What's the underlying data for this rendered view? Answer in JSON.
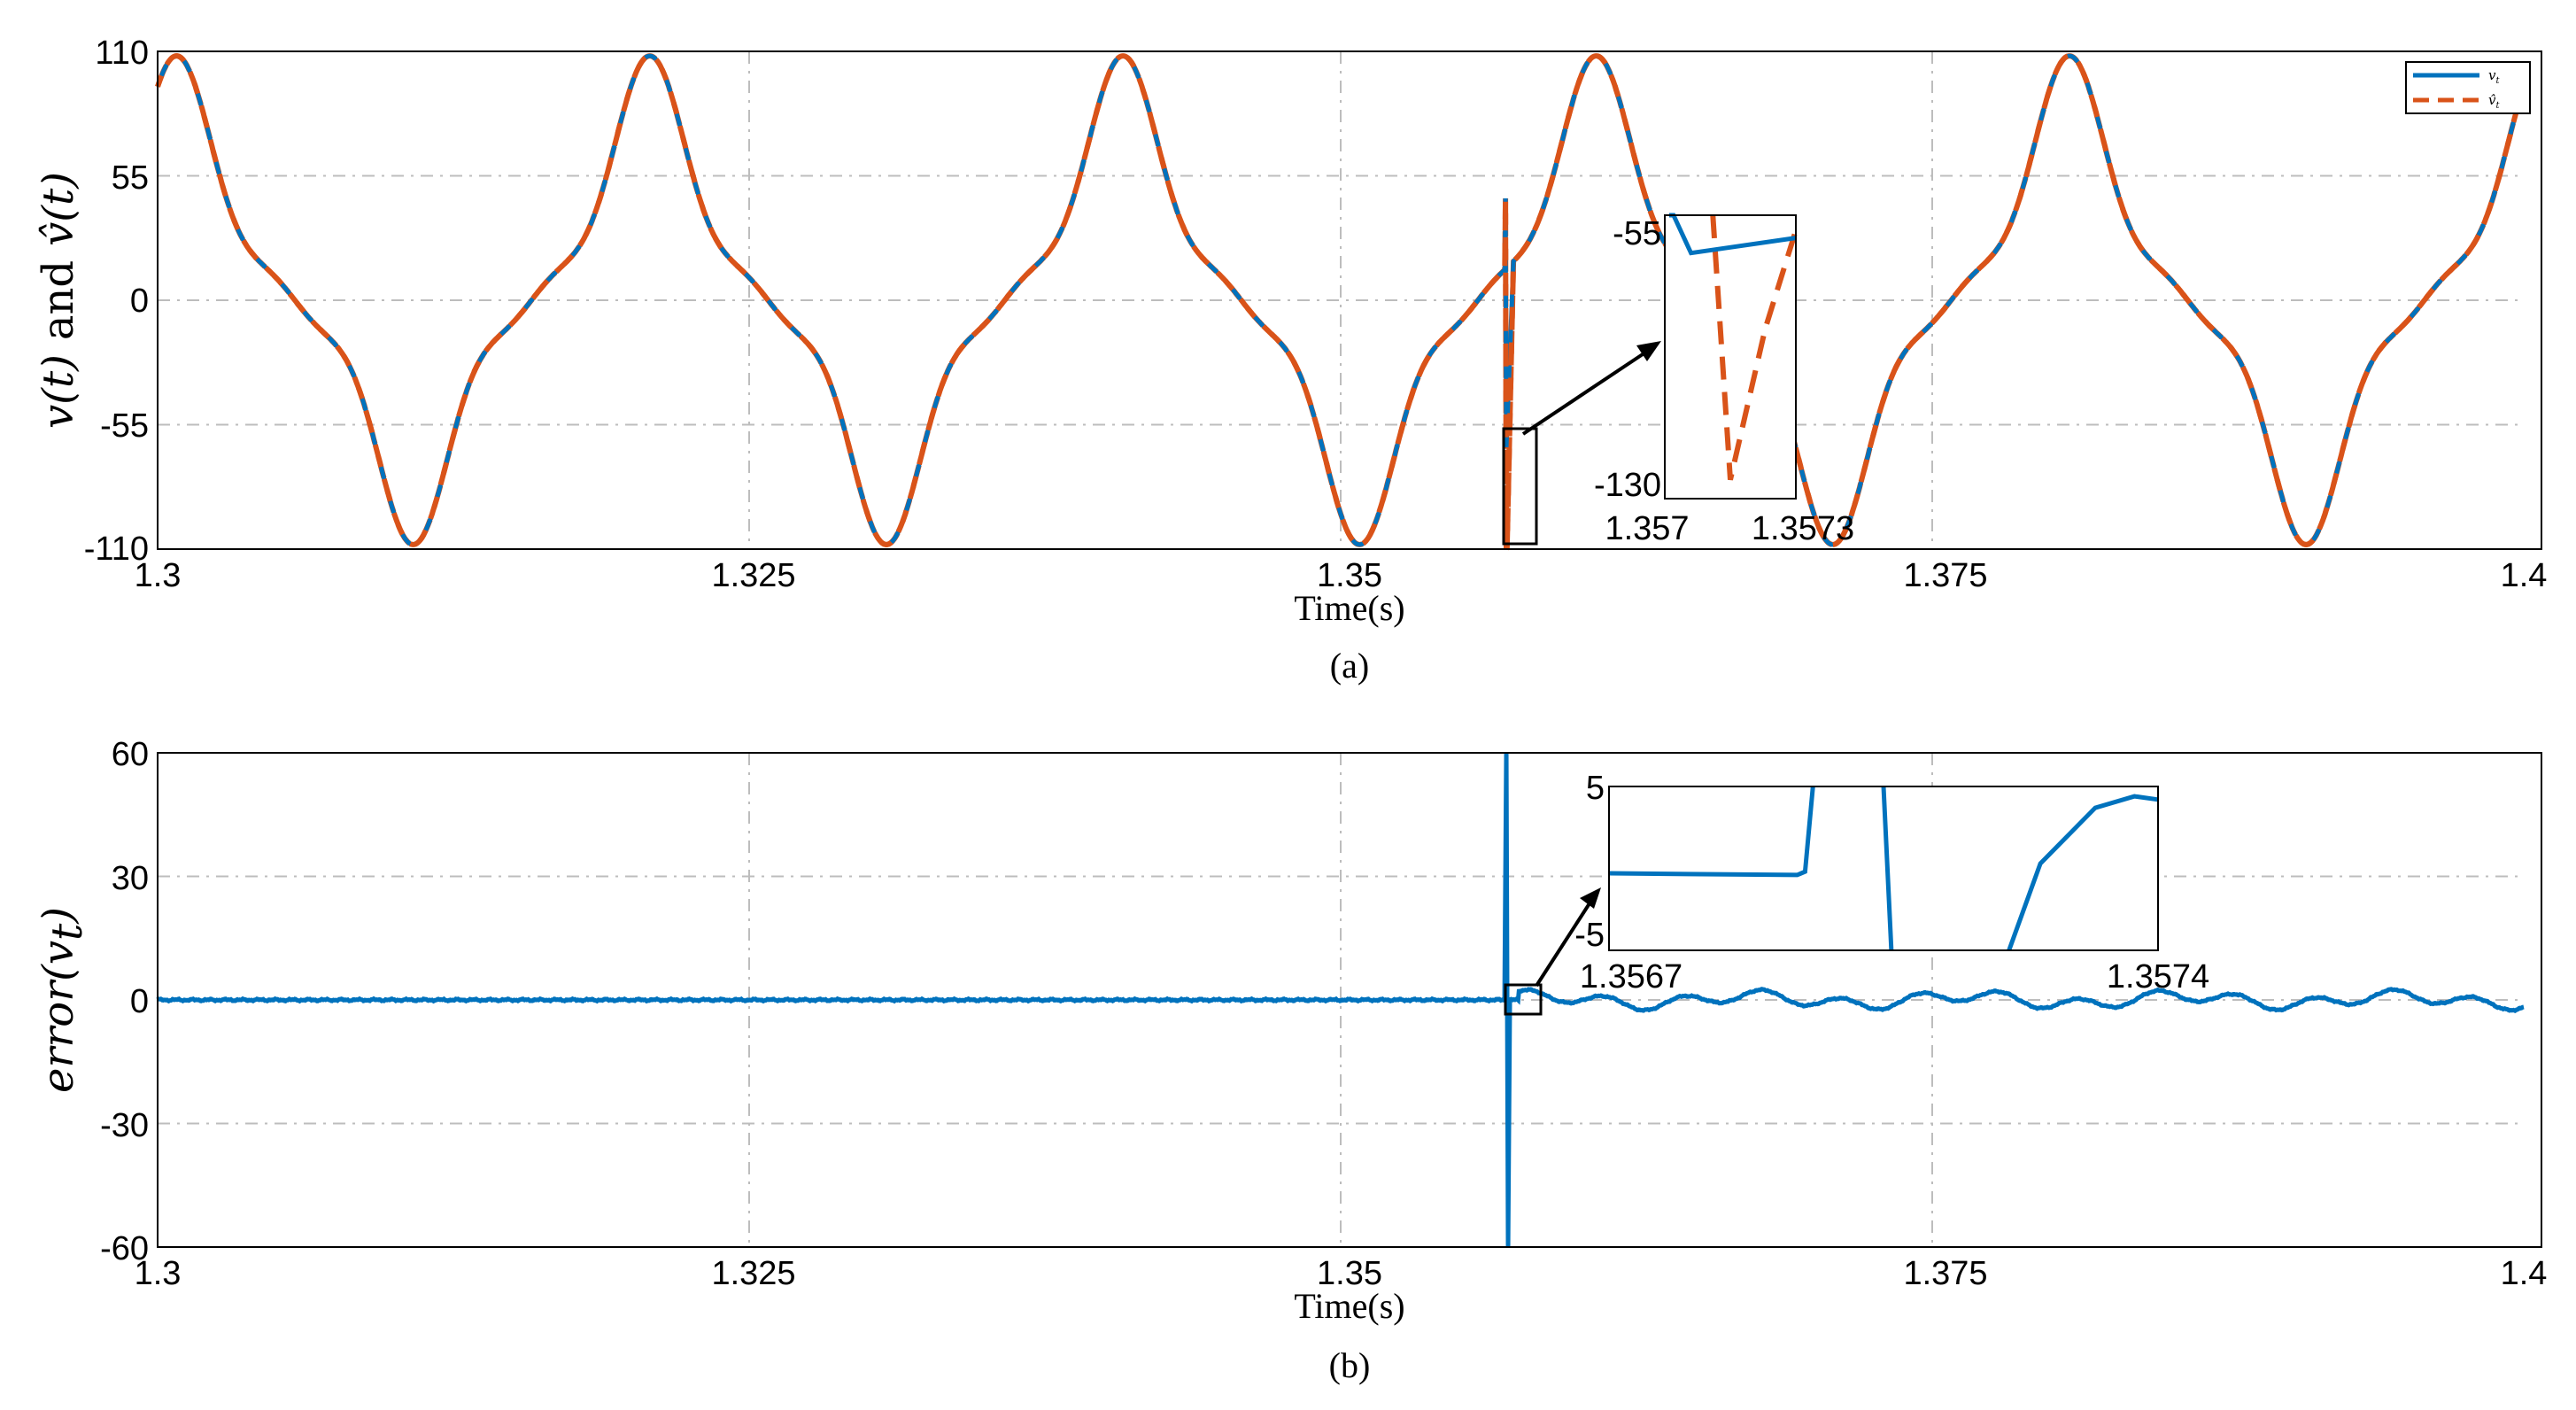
{
  "colors": {
    "v": "#0072BD",
    "vhat": "#D95319",
    "grid": "#BDBDBD",
    "frame": "#000000"
  },
  "charts": [
    {
      "caption": "(a)",
      "xlabel": "Time(s)",
      "ylabel_parts": {
        "first": "v(t)",
        "mid": "and",
        "last": "v̂(t)"
      },
      "xtick_labels": [
        "1.3",
        "1.325",
        "1.35",
        "1.375",
        "1.4"
      ],
      "ytick_labels": [
        "110",
        "55",
        "0",
        "-55",
        "-110"
      ],
      "legend": {
        "v": "v",
        "v_sub": "t",
        "vhat": "v̂",
        "vhat_sub": "t"
      },
      "inset": {
        "ytick_top": "-55",
        "ytick_bottom": "-130",
        "xtick_left": "1.357",
        "xtick_right": "1.3573"
      }
    },
    {
      "caption": "(b)",
      "xlabel": "Time(s)",
      "ylabel": "error(v",
      "ylabel_sub": "t",
      "ylabel_close": ")",
      "xtick_labels": [
        "1.3",
        "1.325",
        "1.35",
        "1.375",
        "1.4"
      ],
      "ytick_labels": [
        "60",
        "30",
        "0",
        "-30",
        "-60"
      ],
      "inset": {
        "ytick_top": "5",
        "ytick_bottom": "-5",
        "xtick_left": "1.3567",
        "xtick_right": "1.3574"
      }
    }
  ],
  "chart_data": [
    {
      "type": "line",
      "xlabel": "Time(s)",
      "ylabel": "v(t) and v̂(t)",
      "xlim": [
        1.3,
        1.4
      ],
      "ylim": [
        -110,
        110
      ],
      "grid": true,
      "legend_position": "top-right",
      "signal": {
        "fundamental_hz": 50,
        "harmonic3_amp": 30,
        "harmonic5_amp": 9,
        "peak": 108
      },
      "event": {
        "time": 1.357,
        "pre_value": 45,
        "dip_v": -65,
        "dip_vhat": -125
      },
      "series": [
        {
          "name": "v_t",
          "style": "solid"
        },
        {
          "name": "v̂_t",
          "style": "dashed"
        }
      ],
      "inset": {
        "xlim": [
          1.357,
          1.3573
        ],
        "ylim": [
          -130,
          -55
        ]
      }
    },
    {
      "type": "line",
      "xlabel": "Time(s)",
      "ylabel": "error(v_t)",
      "xlim": [
        1.3,
        1.4
      ],
      "ylim": [
        -60,
        60
      ],
      "grid": true,
      "spike": {
        "time": 1.357,
        "max": 60,
        "min": -60
      },
      "post_event_oscillation_amplitude": 2.5,
      "inset": {
        "xlim": [
          1.3567,
          1.3574
        ],
        "ylim": [
          -5,
          5
        ]
      }
    }
  ]
}
